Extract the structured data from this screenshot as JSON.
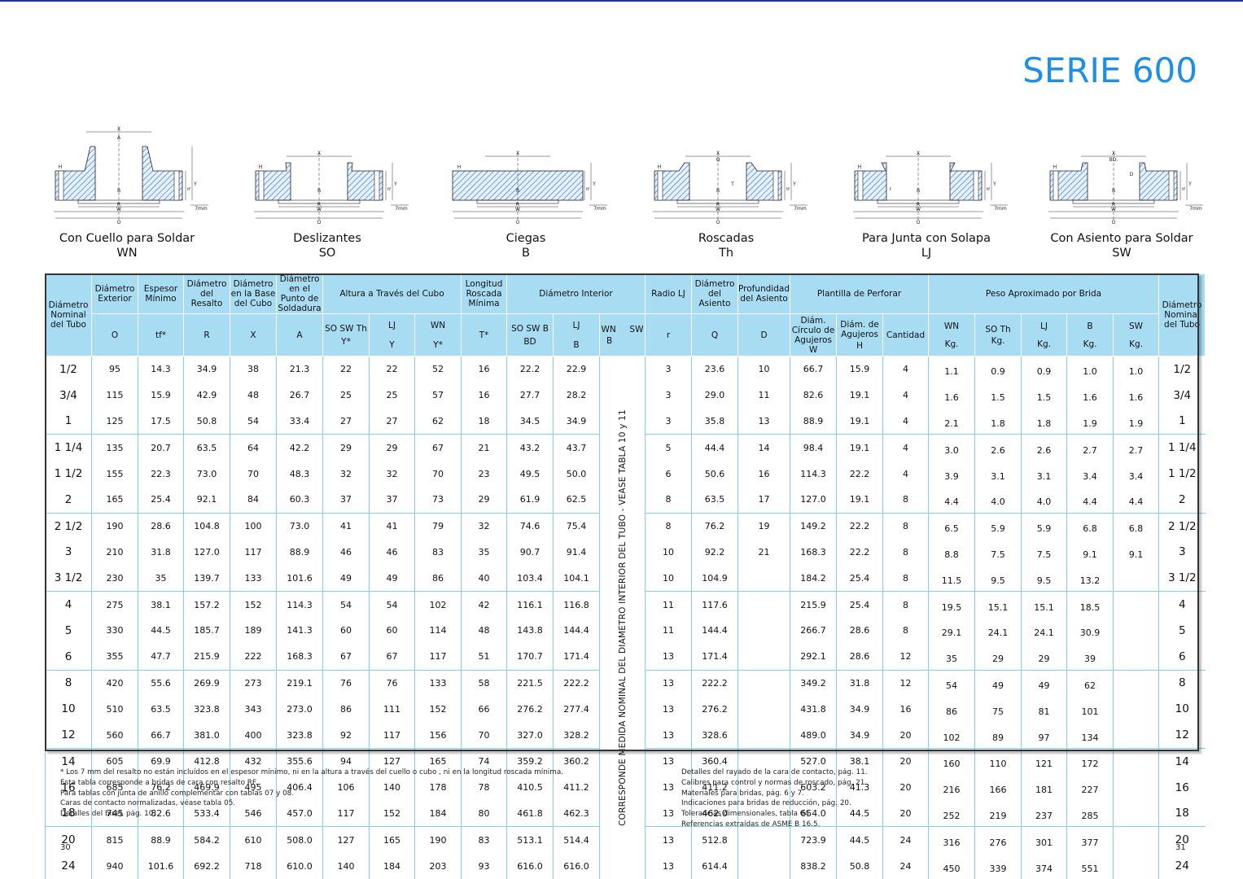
{
  "title": "SERIE 600",
  "flanges": [
    {
      "name": "Con Cuello para Soldar",
      "code": "WN"
    },
    {
      "name": "Deslizantes",
      "code": "SO"
    },
    {
      "name": "Ciegas",
      "code": "B"
    },
    {
      "name": "Roscadas",
      "code": "Th"
    },
    {
      "name": "Para Junta con Solapa",
      "code": "LJ"
    },
    {
      "name": "Con Asiento para Soldar",
      "code": "SW"
    }
  ],
  "diagram_labels": {
    "X": "X",
    "A": "A",
    "B": "B",
    "R": "R",
    "W": "W",
    "O": "O",
    "H": "H",
    "Y": "Y",
    "tf": "tf",
    "mm": "7mm",
    "Q": "Q",
    "T": "T",
    "r": "r",
    "BD": "BD.",
    "D": "D"
  },
  "groups": {
    "altura": "Altura a Través del Cubo",
    "diam_int": "Diámetro Interior",
    "plantilla": "Plantilla de Perforar",
    "peso": "Peso Aproximado por Brida"
  },
  "headers": {
    "nominal": "Diámetro Nominal del Tubo",
    "exterior": "Diámetro Exterior",
    "exterior_sym": "O",
    "espesor": "Espesor Mínimo",
    "espesor_sym": "tf*",
    "resalto": "Diámetro del Resalto",
    "resalto_sym": "R",
    "base_cubo": "Diámetro en la Base del Cubo",
    "base_cubo_sym": "X",
    "soldadura": "Diámetro en el Punto de Soldadura",
    "soldadura_sym": "A",
    "y_so": "SO SW Th",
    "y_so_sym": "Y*",
    "y_lj": "LJ",
    "y_lj_sym": "Y",
    "y_wn": "WN",
    "y_wn_sym": "Y*",
    "longitud": "Longitud Roscada Mínima",
    "longitud_sym": "T*",
    "bd": "SO SW B",
    "bd_sym": "BD",
    "b_lj": "LJ",
    "b_lj_sym": "B",
    "wn_sw": "WN     SW",
    "wn_sw_sym": "B",
    "radio": "Radio LJ",
    "radio_sym": "r",
    "asiento": "Diámetro del Asiento",
    "asiento_sym": "Q",
    "prof": "Profundidad del Asiento",
    "prof_sym": "D",
    "circulo": "Diám. Círculo de Agujeros",
    "circulo_sym": "W",
    "agujeros": "Diám. de Agujeros",
    "agujeros_sym": "H",
    "cantidad": "Cantidad",
    "p_wn": "WN",
    "p_so": "SO Th",
    "p_lj": "LJ",
    "p_b": "B",
    "p_sw": "SW",
    "kg": "Kg."
  },
  "vertical_note": "CORRESPONDE MEDIDA NOMINAL DEL DIAMETRO INTERIOR DEL TUBO - VEASE TABLA  10 y 11",
  "rows": [
    [
      "1/2",
      "95",
      "14.3",
      "34.9",
      "38",
      "21.3",
      "22",
      "22",
      "52",
      "16",
      "22.2",
      "22.9",
      "3",
      "23.6",
      "10",
      "66.7",
      "15.9",
      "4",
      "1.1",
      "0.9",
      "0.9",
      "1.0",
      "1.0",
      "1/2"
    ],
    [
      "3/4",
      "115",
      "15.9",
      "42.9",
      "48",
      "26.7",
      "25",
      "25",
      "57",
      "16",
      "27.7",
      "28.2",
      "3",
      "29.0",
      "11",
      "82.6",
      "19.1",
      "4",
      "1.6",
      "1.5",
      "1.5",
      "1.6",
      "1.6",
      "3/4"
    ],
    [
      "1",
      "125",
      "17.5",
      "50.8",
      "54",
      "33.4",
      "27",
      "27",
      "62",
      "18",
      "34.5",
      "34.9",
      "3",
      "35.8",
      "13",
      "88.9",
      "19.1",
      "4",
      "2.1",
      "1.8",
      "1.8",
      "1.9",
      "1.9",
      "1"
    ],
    [
      "1 1/4",
      "135",
      "20.7",
      "63.5",
      "64",
      "42.2",
      "29",
      "29",
      "67",
      "21",
      "43.2",
      "43.7",
      "5",
      "44.4",
      "14",
      "98.4",
      "19.1",
      "4",
      "3.0",
      "2.6",
      "2.6",
      "2.7",
      "2.7",
      "1 1/4"
    ],
    [
      "1 1/2",
      "155",
      "22.3",
      "73.0",
      "70",
      "48.3",
      "32",
      "32",
      "70",
      "23",
      "49.5",
      "50.0",
      "6",
      "50.6",
      "16",
      "114.3",
      "22.2",
      "4",
      "3.9",
      "3.1",
      "3.1",
      "3.4",
      "3.4",
      "1 1/2"
    ],
    [
      "2",
      "165",
      "25.4",
      "92.1",
      "84",
      "60.3",
      "37",
      "37",
      "73",
      "29",
      "61.9",
      "62.5",
      "8",
      "63.5",
      "17",
      "127.0",
      "19.1",
      "8",
      "4.4",
      "4.0",
      "4.0",
      "4.4",
      "4.4",
      "2"
    ],
    [
      "2 1/2",
      "190",
      "28.6",
      "104.8",
      "100",
      "73.0",
      "41",
      "41",
      "79",
      "32",
      "74.6",
      "75.4",
      "8",
      "76.2",
      "19",
      "149.2",
      "22.2",
      "8",
      "6.5",
      "5.9",
      "5.9",
      "6.8",
      "6.8",
      "2 1/2"
    ],
    [
      "3",
      "210",
      "31.8",
      "127.0",
      "117",
      "88.9",
      "46",
      "46",
      "83",
      "35",
      "90.7",
      "91.4",
      "10",
      "92.2",
      "21",
      "168.3",
      "22.2",
      "8",
      "8.8",
      "7.5",
      "7.5",
      "9.1",
      "9.1",
      "3"
    ],
    [
      "3 1/2",
      "230",
      "35",
      "139.7",
      "133",
      "101.6",
      "49",
      "49",
      "86",
      "40",
      "103.4",
      "104.1",
      "10",
      "104.9",
      "",
      "184.2",
      "25.4",
      "8",
      "11.5",
      "9.5",
      "9.5",
      "13.2",
      "",
      "3 1/2"
    ],
    [
      "4",
      "275",
      "38.1",
      "157.2",
      "152",
      "114.3",
      "54",
      "54",
      "102",
      "42",
      "116.1",
      "116.8",
      "11",
      "117.6",
      "",
      "215.9",
      "25.4",
      "8",
      "19.5",
      "15.1",
      "15.1",
      "18.5",
      "",
      "4"
    ],
    [
      "5",
      "330",
      "44.5",
      "185.7",
      "189",
      "141.3",
      "60",
      "60",
      "114",
      "48",
      "143.8",
      "144.4",
      "11",
      "144.4",
      "",
      "266.7",
      "28.6",
      "8",
      "29.1",
      "24.1",
      "24.1",
      "30.9",
      "",
      "5"
    ],
    [
      "6",
      "355",
      "47.7",
      "215.9",
      "222",
      "168.3",
      "67",
      "67",
      "117",
      "51",
      "170.7",
      "171.4",
      "13",
      "171.4",
      "",
      "292.1",
      "28.6",
      "12",
      "35",
      "29",
      "29",
      "39",
      "",
      "6"
    ],
    [
      "8",
      "420",
      "55.6",
      "269.9",
      "273",
      "219.1",
      "76",
      "76",
      "133",
      "58",
      "221.5",
      "222.2",
      "13",
      "222.2",
      "",
      "349.2",
      "31.8",
      "12",
      "54",
      "49",
      "49",
      "62",
      "",
      "8"
    ],
    [
      "10",
      "510",
      "63.5",
      "323.8",
      "343",
      "273.0",
      "86",
      "111",
      "152",
      "66",
      "276.2",
      "277.4",
      "13",
      "276.2",
      "",
      "431.8",
      "34.9",
      "16",
      "86",
      "75",
      "81",
      "101",
      "",
      "10"
    ],
    [
      "12",
      "560",
      "66.7",
      "381.0",
      "400",
      "323.8",
      "92",
      "117",
      "156",
      "70",
      "327.0",
      "328.2",
      "13",
      "328.6",
      "",
      "489.0",
      "34.9",
      "20",
      "102",
      "89",
      "97",
      "134",
      "",
      "12"
    ],
    [
      "14",
      "605",
      "69.9",
      "412.8",
      "432",
      "355.6",
      "94",
      "127",
      "165",
      "74",
      "359.2",
      "360.2",
      "13",
      "360.4",
      "",
      "527.0",
      "38.1",
      "20",
      "160",
      "110",
      "121",
      "172",
      "",
      "14"
    ],
    [
      "16",
      "685",
      "76.2",
      "469.9",
      "495",
      "406.4",
      "106",
      "140",
      "178",
      "78",
      "410.5",
      "411.2",
      "13",
      "411.2",
      "",
      "603.2",
      "41.3",
      "20",
      "216",
      "166",
      "181",
      "227",
      "",
      "16"
    ],
    [
      "18",
      "745",
      "82.6",
      "533.4",
      "546",
      "457.0",
      "117",
      "152",
      "184",
      "80",
      "461.8",
      "462.3",
      "13",
      "462.0",
      "",
      "654.0",
      "44.5",
      "20",
      "252",
      "219",
      "237",
      "285",
      "",
      "18"
    ],
    [
      "20",
      "815",
      "88.9",
      "584.2",
      "610",
      "508.0",
      "127",
      "165",
      "190",
      "83",
      "513.1",
      "514.4",
      "13",
      "512.8",
      "",
      "723.9",
      "44.5",
      "24",
      "316",
      "276",
      "301",
      "377",
      "",
      "20"
    ],
    [
      "24",
      "940",
      "101.6",
      "692.2",
      "718",
      "610.0",
      "140",
      "184",
      "203",
      "93",
      "616.0",
      "616.0",
      "13",
      "614.4",
      "",
      "838.2",
      "50.8",
      "24",
      "450",
      "339",
      "374",
      "551",
      "",
      "24"
    ]
  ],
  "notes_left": [
    "* Los 7 mm del resalto no están incluídos en el espesor mínimo, ni en la altura a través del cuello o cubo , ni en la longitud roscada mínima.",
    "Esta tabla corresponde a bridas de cara con resalto RF.",
    "Para tablas con junta de anillo complementar con tablas 07 y 08.",
    "Caras de contacto normalizadas, véase tabla 05.",
    "Detalles del bisel, pág. 10."
  ],
  "notes_right": [
    "Detalles del rayado de la cara de contacto, pág. 11.",
    "Calibres para control y normas de roscado, pág. 21.",
    "Materiales para bridas, pág. 6 y 7.",
    "Indicaciones para bridas de reducción, pág. 20.",
    "Tolerancias dimensionales, tabla 04.",
    "Referencias extraídas de ASME B 16.5."
  ],
  "page_left": "30",
  "page_right": "31",
  "colors": {
    "header_bg": "#a8dcf3",
    "title": "#1e8fe8",
    "rules": "#7fd0f0",
    "hatch": "#2f7fd6"
  }
}
